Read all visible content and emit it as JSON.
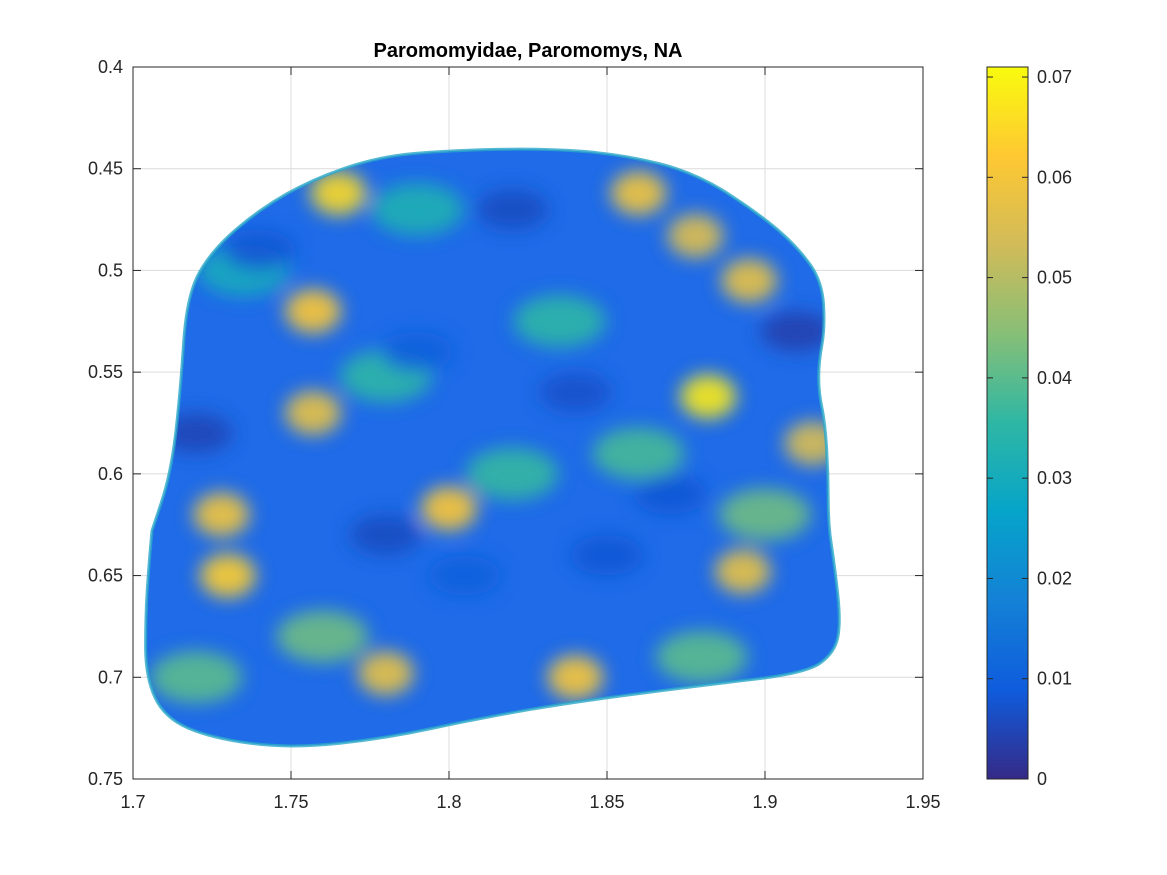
{
  "chart_data": {
    "type": "heatmap",
    "title": "Paromomyidae, Paromomys, NA",
    "xlabel": "",
    "ylabel": "",
    "xlim": [
      1.7,
      1.95
    ],
    "ylim": [
      0.4,
      0.75
    ],
    "y_reversed": true,
    "grid": true,
    "x_ticks": [
      1.7,
      1.75,
      1.8,
      1.85,
      1.9,
      1.95
    ],
    "x_tick_labels": [
      "1.7",
      "1.75",
      "1.8",
      "1.85",
      "1.9",
      "1.95"
    ],
    "y_ticks": [
      0.4,
      0.45,
      0.5,
      0.55,
      0.6,
      0.65,
      0.7,
      0.75
    ],
    "y_tick_labels": [
      "0.4",
      "0.45",
      "0.5",
      "0.55",
      "0.6",
      "0.65",
      "0.7",
      "0.75"
    ],
    "colorbar": {
      "colormap": "parula",
      "range": [
        0,
        0.071
      ],
      "ticks": [
        0,
        0.01,
        0.02,
        0.03,
        0.04,
        0.05,
        0.06,
        0.07
      ],
      "tick_labels": [
        "0",
        "0.01",
        "0.02",
        "0.03",
        "0.04",
        "0.05",
        "0.06",
        "0.07"
      ],
      "placement": "right"
    },
    "surface_outline": [
      [
        1.706,
        0.628
      ],
      [
        1.712,
        0.6
      ],
      [
        1.715,
        0.56
      ],
      [
        1.717,
        0.512
      ],
      [
        1.725,
        0.49
      ],
      [
        1.74,
        0.47
      ],
      [
        1.757,
        0.455
      ],
      [
        1.778,
        0.444
      ],
      [
        1.8,
        0.441
      ],
      [
        1.83,
        0.44
      ],
      [
        1.855,
        0.443
      ],
      [
        1.878,
        0.452
      ],
      [
        1.898,
        0.472
      ],
      [
        1.91,
        0.488
      ],
      [
        1.918,
        0.505
      ],
      [
        1.919,
        0.528
      ],
      [
        1.917,
        0.545
      ],
      [
        1.917,
        0.56
      ],
      [
        1.919,
        0.575
      ],
      [
        1.92,
        0.6
      ],
      [
        1.92,
        0.625
      ],
      [
        1.922,
        0.645
      ],
      [
        1.924,
        0.673
      ],
      [
        1.922,
        0.688
      ],
      [
        1.913,
        0.698
      ],
      [
        1.88,
        0.704
      ],
      [
        1.84,
        0.712
      ],
      [
        1.81,
        0.72
      ],
      [
        1.78,
        0.73
      ],
      [
        1.75,
        0.735
      ],
      [
        1.725,
        0.73
      ],
      [
        1.71,
        0.72
      ],
      [
        1.704,
        0.7
      ],
      [
        1.704,
        0.67
      ],
      [
        1.705,
        0.645
      ]
    ],
    "high_value_regions": [
      {
        "x": 1.757,
        "y": 0.52,
        "value": 0.062
      },
      {
        "x": 1.765,
        "y": 0.462,
        "value": 0.065
      },
      {
        "x": 1.757,
        "y": 0.57,
        "value": 0.058
      },
      {
        "x": 1.73,
        "y": 0.65,
        "value": 0.063
      },
      {
        "x": 1.728,
        "y": 0.62,
        "value": 0.06
      },
      {
        "x": 1.8,
        "y": 0.617,
        "value": 0.062
      },
      {
        "x": 1.84,
        "y": 0.7,
        "value": 0.061
      },
      {
        "x": 1.78,
        "y": 0.698,
        "value": 0.058
      },
      {
        "x": 1.86,
        "y": 0.462,
        "value": 0.06
      },
      {
        "x": 1.895,
        "y": 0.505,
        "value": 0.058
      },
      {
        "x": 1.882,
        "y": 0.562,
        "value": 0.068
      },
      {
        "x": 1.893,
        "y": 0.648,
        "value": 0.058
      },
      {
        "x": 1.878,
        "y": 0.483,
        "value": 0.056
      },
      {
        "x": 1.915,
        "y": 0.585,
        "value": 0.055
      }
    ],
    "mid_value_regions": [
      {
        "x": 1.79,
        "y": 0.47,
        "value": 0.032
      },
      {
        "x": 1.835,
        "y": 0.525,
        "value": 0.035
      },
      {
        "x": 1.86,
        "y": 0.59,
        "value": 0.038
      },
      {
        "x": 1.76,
        "y": 0.68,
        "value": 0.042
      },
      {
        "x": 1.88,
        "y": 0.69,
        "value": 0.04
      },
      {
        "x": 1.72,
        "y": 0.7,
        "value": 0.04
      },
      {
        "x": 1.82,
        "y": 0.6,
        "value": 0.036
      },
      {
        "x": 1.735,
        "y": 0.5,
        "value": 0.03
      },
      {
        "x": 1.9,
        "y": 0.62,
        "value": 0.042
      },
      {
        "x": 1.78,
        "y": 0.552,
        "value": 0.035
      }
    ],
    "low_value_regions": [
      {
        "x": 1.72,
        "y": 0.58,
        "value": 0.005
      },
      {
        "x": 1.78,
        "y": 0.63,
        "value": 0.006
      },
      {
        "x": 1.805,
        "y": 0.65,
        "value": 0.01
      },
      {
        "x": 1.85,
        "y": 0.64,
        "value": 0.008
      },
      {
        "x": 1.79,
        "y": 0.54,
        "value": 0.01
      },
      {
        "x": 1.84,
        "y": 0.56,
        "value": 0.007
      },
      {
        "x": 1.91,
        "y": 0.53,
        "value": 0.004
      },
      {
        "x": 1.74,
        "y": 0.49,
        "value": 0.008
      },
      {
        "x": 1.82,
        "y": 0.47,
        "value": 0.006
      },
      {
        "x": 1.87,
        "y": 0.61,
        "value": 0.008
      }
    ]
  }
}
